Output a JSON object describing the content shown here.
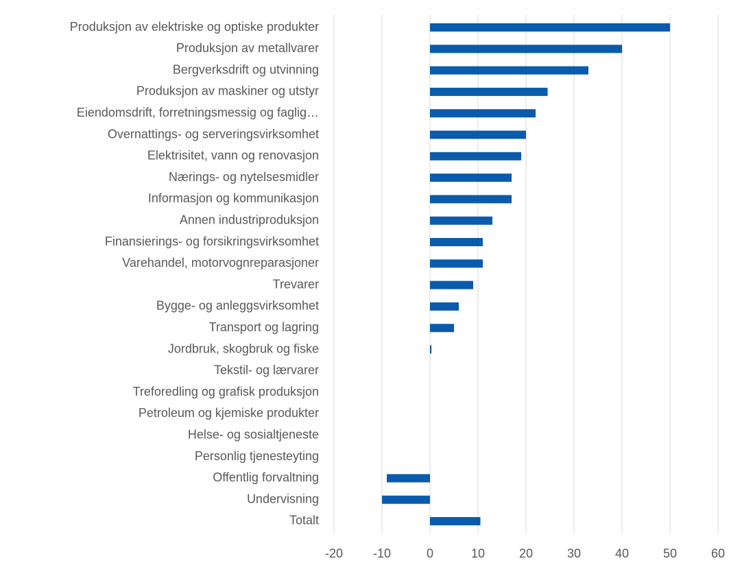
{
  "chart_data": {
    "type": "barh",
    "categories": [
      "Produksjon av elektriske og optiske produkter",
      "Produksjon av metallvarer",
      "Bergverksdrift og utvinning",
      "Produksjon av maskiner og utstyr",
      "Eiendomsdrift, forretningsmessig og faglig…",
      "Overnattings- og serveringsvirksomhet",
      "Elektrisitet, vann og renovasjon",
      "Nærings- og nytelsesmidler",
      "Informasjon og kommunikasjon",
      "Annen industriproduksjon",
      "Finansierings- og forsikringsvirksomhet",
      "Varehandel, motorvognreparasjoner",
      "Trevarer",
      "Bygge- og anleggsvirksomhet",
      "Transport og lagring",
      "Jordbruk, skogbruk og fiske",
      "Tekstil- og lærvarer",
      "Treforedling og grafisk produksjon",
      "Petroleum og kjemiske produkter",
      "Helse- og sosialtjeneste",
      "Personlig tjenesteyting",
      "Offentlig forvaltning",
      "Undervisning",
      "Totalt"
    ],
    "values": [
      50,
      40,
      33,
      24.5,
      22,
      20,
      19,
      17,
      17,
      13,
      11,
      11,
      9,
      6,
      5,
      0.3,
      0,
      0,
      0,
      0,
      0,
      -9,
      -10,
      10.5
    ],
    "color": "#0a5bab",
    "xlim": [
      -20,
      60
    ],
    "xticks": [
      -20,
      -10,
      0,
      10,
      20,
      30,
      40,
      50,
      60
    ],
    "grid": true
  }
}
